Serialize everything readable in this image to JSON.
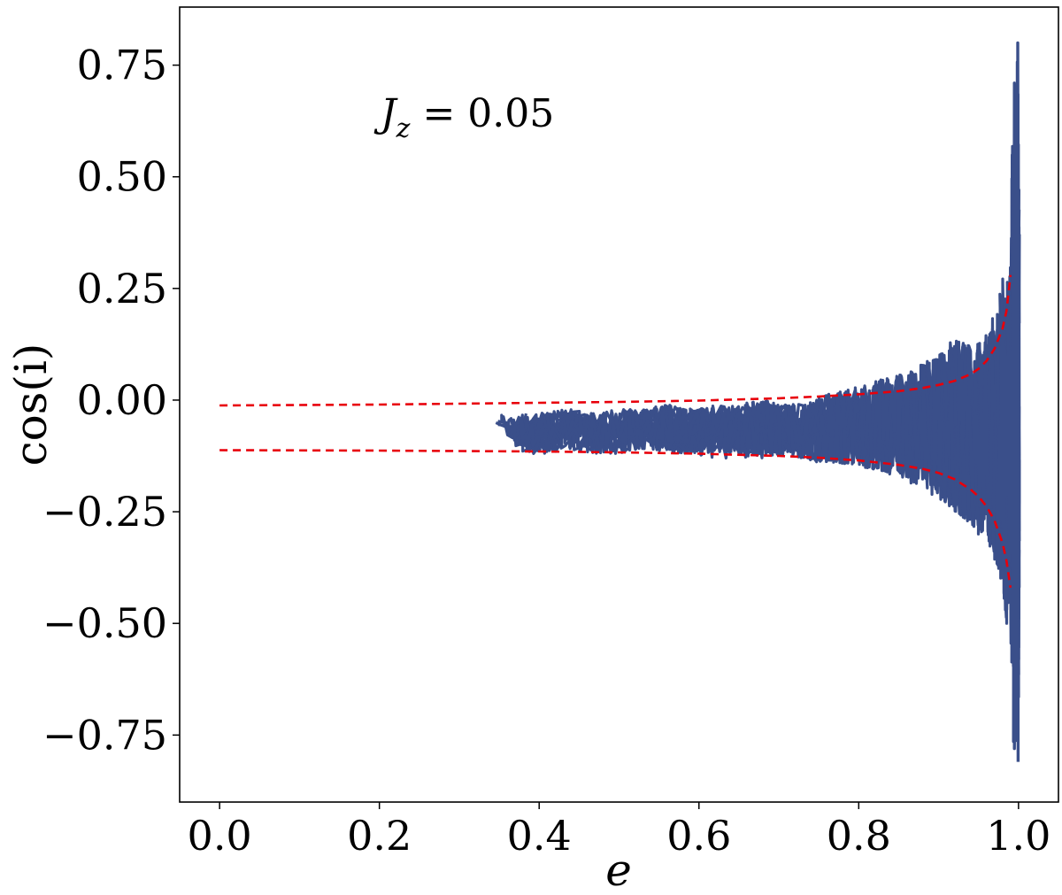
{
  "chart_data": {
    "type": "line",
    "xlabel": "e",
    "ylabel": "cos(i)",
    "xlim": [
      -0.05,
      1.05
    ],
    "ylim": [
      -0.9,
      0.88
    ],
    "xticks": [
      0.0,
      0.2,
      0.4,
      0.6,
      0.8,
      1.0
    ],
    "xtick_labels": [
      "0.0",
      "0.2",
      "0.4",
      "0.6",
      "0.8",
      "1.0"
    ],
    "yticks": [
      -0.75,
      -0.5,
      -0.25,
      0.0,
      0.25,
      0.5,
      0.75
    ],
    "ytick_labels": [
      "−0.75",
      "−0.50",
      "−0.25",
      "0.00",
      "0.25",
      "0.50",
      "0.75"
    ],
    "annotation": {
      "label_main": "J",
      "label_sub": "z",
      "label_rest": " = 0.05",
      "position": "top-left"
    },
    "grid": false,
    "legend": "none",
    "colors": {
      "trajectory": "#3a4f8a",
      "bounds": "#e8000b"
    },
    "trajectory": {
      "e": [
        0.35,
        0.37,
        0.36,
        0.39,
        0.41,
        0.44,
        0.47,
        0.5,
        0.53,
        0.56,
        0.59,
        0.62,
        0.65,
        0.68,
        0.71,
        0.74,
        0.77,
        0.8,
        0.83,
        0.86,
        0.88,
        0.9,
        0.92,
        0.94,
        0.95,
        0.96,
        0.97,
        0.975,
        0.98,
        0.985,
        0.99,
        0.993,
        0.996,
        0.998,
        0.999,
        1.0
      ],
      "cos_i_upper": [
        -0.03,
        -0.04,
        -0.03,
        -0.03,
        -0.02,
        -0.02,
        -0.03,
        -0.02,
        -0.02,
        -0.01,
        -0.02,
        -0.01,
        -0.01,
        0.0,
        -0.01,
        0.0,
        0.02,
        0.03,
        0.05,
        0.06,
        0.08,
        0.1,
        0.14,
        0.12,
        0.13,
        0.15,
        0.2,
        0.22,
        0.3,
        0.24,
        0.32,
        0.6,
        0.55,
        0.7,
        0.8,
        0.5
      ],
      "cos_i_lower": [
        -0.08,
        -0.09,
        -0.11,
        -0.12,
        -0.12,
        -0.11,
        -0.12,
        -0.12,
        -0.11,
        -0.12,
        -0.12,
        -0.13,
        -0.13,
        -0.13,
        -0.12,
        -0.14,
        -0.14,
        -0.15,
        -0.16,
        -0.18,
        -0.2,
        -0.22,
        -0.25,
        -0.28,
        -0.3,
        -0.31,
        -0.35,
        -0.38,
        -0.42,
        -0.5,
        -0.55,
        -0.62,
        -0.7,
        -0.78,
        -0.81,
        -0.6
      ]
    },
    "bound_upper": {
      "e": [
        0.0,
        0.2,
        0.4,
        0.5,
        0.6,
        0.7,
        0.75,
        0.8,
        0.85,
        0.88,
        0.9,
        0.92,
        0.94,
        0.95,
        0.96,
        0.97,
        0.98,
        0.985,
        0.99
      ],
      "cos_i": [
        -0.012,
        -0.01,
        -0.006,
        -0.004,
        -0.001,
        0.004,
        0.008,
        0.013,
        0.02,
        0.027,
        0.034,
        0.043,
        0.058,
        0.07,
        0.088,
        0.115,
        0.16,
        0.2,
        0.28
      ]
    },
    "bound_lower": {
      "e": [
        0.0,
        0.2,
        0.4,
        0.5,
        0.6,
        0.7,
        0.75,
        0.8,
        0.85,
        0.88,
        0.9,
        0.92,
        0.94,
        0.95,
        0.96,
        0.97,
        0.98,
        0.985,
        0.99
      ],
      "cos_i": [
        -0.112,
        -0.113,
        -0.115,
        -0.117,
        -0.12,
        -0.125,
        -0.129,
        -0.135,
        -0.145,
        -0.154,
        -0.163,
        -0.177,
        -0.2,
        -0.216,
        -0.238,
        -0.27,
        -0.32,
        -0.36,
        -0.42
      ]
    }
  }
}
